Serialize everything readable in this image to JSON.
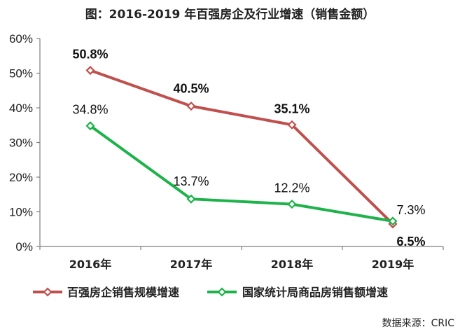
{
  "chart_data": {
    "type": "line",
    "title": "图：2016-2019 年百强房企及行业增速（销售金额）",
    "categories": [
      "2016年",
      "2017年",
      "2018年",
      "2019年"
    ],
    "ylim": [
      0,
      60
    ],
    "yticks": [
      "0%",
      "10%",
      "20%",
      "30%",
      "40%",
      "50%",
      "60%"
    ],
    "yunit": "%",
    "grid": false,
    "legend_position": "bottom",
    "series": [
      {
        "name": "百强房企销售规模增速",
        "color": "#c0504d",
        "values": [
          50.8,
          40.5,
          35.1,
          6.5
        ],
        "labels": [
          "50.8%",
          "40.5%",
          "35.1%",
          "6.5%"
        ]
      },
      {
        "name": "国家统计局商品房销售额增速",
        "color": "#1db34a",
        "values": [
          34.8,
          13.7,
          12.2,
          7.3
        ],
        "labels": [
          "34.8%",
          "13.7%",
          "12.2%",
          "7.3%"
        ]
      }
    ],
    "source": "数据来源：CRIC"
  }
}
